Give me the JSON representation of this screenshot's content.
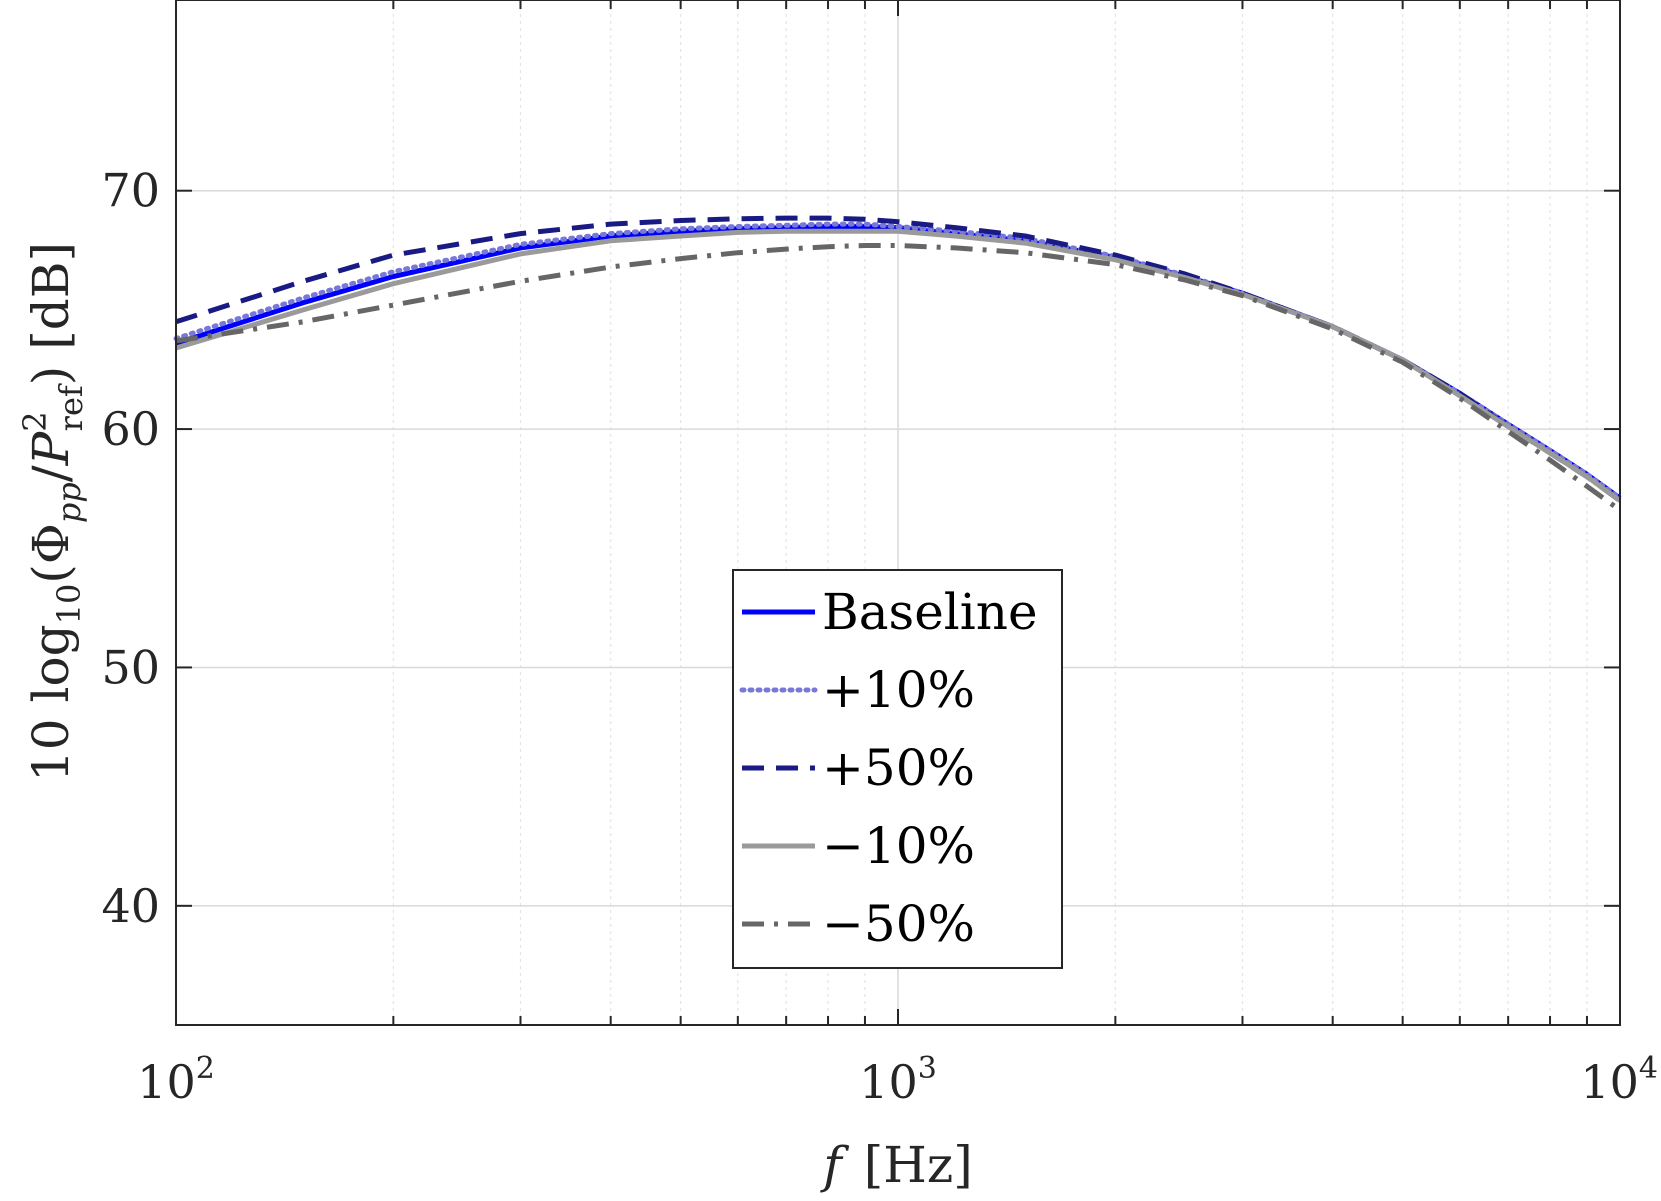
{
  "chart_data": {
    "type": "line",
    "title": "",
    "xlabel": {
      "symbol": "f",
      "unit": "[Hz]"
    },
    "ylabel": {
      "prefix": "10 log",
      "sub10": "10",
      "open": "(",
      "phi": "Φ",
      "phi_sub": "pp",
      "slash": "/",
      "p": "P",
      "p_sup": "2",
      "p_sub": "ref",
      "close": ")",
      "unit": "[dB]"
    },
    "xscale": "log",
    "xlim": [
      100,
      10000
    ],
    "ylim": [
      35,
      78
    ],
    "xticks": [
      {
        "value": 100,
        "base": "10",
        "exp": "2"
      },
      {
        "value": 1000,
        "base": "10",
        "exp": "3"
      },
      {
        "value": 10000,
        "base": "10",
        "exp": "4"
      }
    ],
    "yticks": [
      {
        "value": 40,
        "label": "40"
      },
      {
        "value": 50,
        "label": "50"
      },
      {
        "value": 60,
        "label": "60"
      },
      {
        "value": 70,
        "label": "70"
      }
    ],
    "grid": true,
    "legend_position": "center-bottom",
    "x": [
      100,
      150,
      200,
      300,
      400,
      500,
      600,
      700,
      800,
      900,
      1000,
      1200,
      1500,
      2000,
      2500,
      3000,
      4000,
      5000,
      6000,
      7000,
      8000,
      9000,
      10000
    ],
    "series": [
      {
        "name": "Baseline",
        "color": "#0000ff",
        "dash": "solid",
        "width": 5,
        "values": [
          63.6,
          65.3,
          66.4,
          67.6,
          68.1,
          68.3,
          68.4,
          68.45,
          68.5,
          68.5,
          68.45,
          68.2,
          67.9,
          67.2,
          66.4,
          65.7,
          64.3,
          62.9,
          61.5,
          60.2,
          59.1,
          58.1,
          57.1
        ]
      },
      {
        "name": "+10%",
        "color": "#7878d8",
        "dash": "dotted",
        "width": 5,
        "values": [
          63.8,
          65.5,
          66.6,
          67.75,
          68.2,
          68.4,
          68.5,
          68.55,
          68.6,
          68.6,
          68.5,
          68.3,
          68.0,
          67.25,
          66.45,
          65.7,
          64.3,
          62.9,
          61.5,
          60.2,
          59.1,
          58.1,
          57.1
        ]
      },
      {
        "name": "+50%",
        "color": "#1a1a85",
        "dash": "dashed",
        "width": 5,
        "values": [
          64.5,
          66.2,
          67.3,
          68.2,
          68.6,
          68.75,
          68.82,
          68.85,
          68.85,
          68.8,
          68.7,
          68.45,
          68.1,
          67.3,
          66.5,
          65.7,
          64.3,
          62.9,
          61.5,
          60.1,
          59.0,
          58.0,
          57.0
        ]
      },
      {
        "name": "−10%",
        "color": "#9a9a9a",
        "dash": "solid",
        "width": 5,
        "values": [
          63.4,
          65.0,
          66.1,
          67.35,
          67.9,
          68.1,
          68.25,
          68.3,
          68.3,
          68.3,
          68.3,
          68.1,
          67.8,
          67.1,
          66.35,
          65.65,
          64.3,
          62.9,
          61.4,
          60.1,
          59.0,
          58.0,
          57.0
        ]
      },
      {
        "name": "−50%",
        "color": "#666666",
        "dash": "dashdot",
        "width": 5,
        "values": [
          63.7,
          64.5,
          65.2,
          66.2,
          66.8,
          67.15,
          67.4,
          67.55,
          67.65,
          67.7,
          67.7,
          67.6,
          67.4,
          66.9,
          66.25,
          65.6,
          64.2,
          62.8,
          61.3,
          59.9,
          58.7,
          57.6,
          56.6
        ]
      }
    ]
  }
}
